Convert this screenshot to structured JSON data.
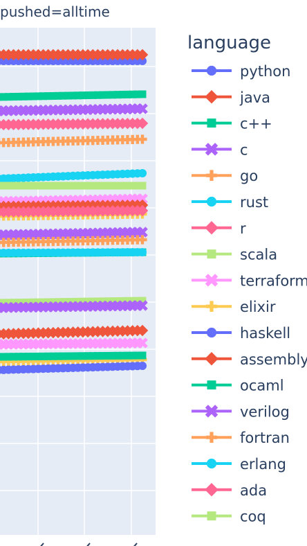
{
  "chart_data": {
    "type": "line",
    "title": "pushed=alltime",
    "legend": {
      "title": "language",
      "placement": "right"
    },
    "grid": true,
    "series": [
      {
        "name": "python",
        "color": "#636efa",
        "marker": "circle",
        "values": [
          88,
          88
        ]
      },
      {
        "name": "java",
        "color": "#ef553b",
        "marker": "diamond",
        "values": [
          79,
          79
        ]
      },
      {
        "name": "c++",
        "color": "#00cc96",
        "marker": "square",
        "values": [
          140,
          136
        ]
      },
      {
        "name": "c",
        "color": "#ab63fa",
        "marker": "x",
        "values": [
          160,
          157
        ]
      },
      {
        "name": "go",
        "color": "#ffa15a",
        "marker": "cross",
        "values": [
          206,
          201
        ]
      },
      {
        "name": "rust",
        "color": "#19d3f3",
        "marker": "circle",
        "values": [
          258,
          250
        ]
      },
      {
        "name": "r",
        "color": "#ff6692",
        "marker": "diamond",
        "values": [
          180,
          178
        ]
      },
      {
        "name": "scala",
        "color": "#b6e880",
        "marker": "square",
        "values": [
          268,
          268
        ]
      },
      {
        "name": "terraform",
        "color": "#ff97ff",
        "marker": "x",
        "values": [
          291,
          287
        ]
      },
      {
        "name": "elixir",
        "color": "#fecb52",
        "marker": "cross",
        "values": [
          312,
          309
        ]
      },
      {
        "name": "haskell",
        "color": "#636efa",
        "marker": "circle",
        "values": [
          300,
          297
        ]
      },
      {
        "name": "assembly",
        "color": "#ef553b",
        "marker": "diamond",
        "values": [
          298,
          296
        ]
      },
      {
        "name": "ocaml",
        "color": "#00cc96",
        "marker": "square",
        "values": [
          366,
          364
        ]
      },
      {
        "name": "verilog",
        "color": "#ab63fa",
        "marker": "x",
        "values": [
          339,
          335
        ]
      },
      {
        "name": "fortran",
        "color": "#ffa15a",
        "marker": "cross",
        "values": [
          350,
          346
        ]
      },
      {
        "name": "erlang",
        "color": "#19d3f3",
        "marker": "circle",
        "values": [
          365,
          364
        ]
      },
      {
        "name": "ada",
        "color": "#ff6692",
        "marker": "diamond",
        "values": [
          306,
          304
        ]
      },
      {
        "name": "coq",
        "color": "#b6e880",
        "marker": "square",
        "values": [
          437,
          434
        ]
      },
      {
        "name": "",
        "color": "#ab63fa",
        "marker": "x",
        "values": [
          444,
          441
        ]
      },
      {
        "name": "",
        "color": "#ef553b",
        "marker": "diamond",
        "values": [
          482,
          477
        ]
      },
      {
        "name": "",
        "color": "#ff97ff",
        "marker": "x",
        "values": [
          497,
          495
        ]
      },
      {
        "name": "",
        "color": "#fecb52",
        "marker": "cross",
        "values": [
          522,
          519
        ]
      },
      {
        "name": "",
        "color": "#00cc96",
        "marker": "square",
        "values": [
          515,
          513
        ]
      },
      {
        "name": "",
        "color": "#636efa",
        "marker": "circle",
        "values": [
          534,
          528
        ]
      }
    ]
  }
}
